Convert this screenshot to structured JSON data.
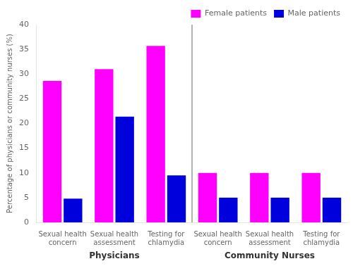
{
  "chart_data": {
    "type": "bar",
    "categories": [
      "Sexual health\nconcern",
      "Sexual health\nassessment",
      "Testing for\nchlamydia",
      "Sexual health\nconcern",
      "Sexual health\nassessment",
      "Testing for\nchlamydia"
    ],
    "series": [
      {
        "name": "Female patients",
        "color": "#FF00FF",
        "values": [
          28.6,
          31.0,
          35.7,
          10.0,
          10.0,
          10.0
        ]
      },
      {
        "name": "Male patients",
        "color": "#0000DD",
        "values": [
          4.8,
          21.4,
          9.5,
          5.0,
          5.0,
          5.0
        ]
      }
    ],
    "ylabel": "Percentage of physicians or community nurses (%)",
    "ylim": [
      0,
      40
    ],
    "yticks": [
      0,
      5,
      10,
      15,
      20,
      25,
      30,
      35,
      40
    ],
    "grid": false,
    "legend": "upper right",
    "annotations": [
      "Physicians",
      "Community Nurses"
    ]
  }
}
